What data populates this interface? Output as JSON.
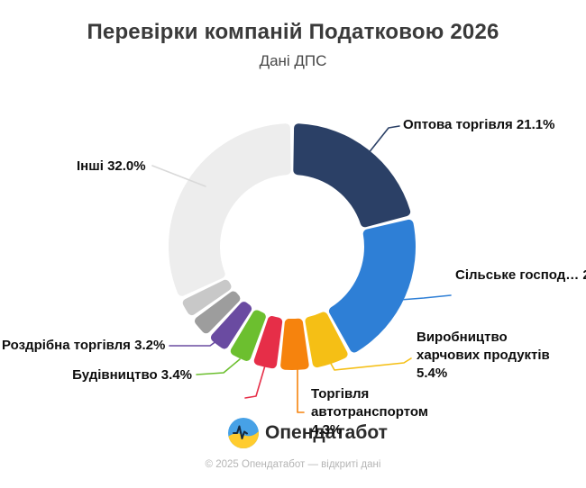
{
  "chart_data": {
    "type": "pie",
    "subtype": "donut",
    "title": "Перевірки компаній Податковою 2026",
    "subtitle": "Дані ДПС",
    "value_unit": "%",
    "legend": "none",
    "slices": [
      {
        "name": "Оптова торгівля",
        "value": 21.1,
        "color": "#2b4066",
        "callout": "Оптова торгівля 21.1%"
      },
      {
        "name": "Сільське господ…",
        "value": 21.0,
        "estimated": true,
        "color": "#2e7fd6",
        "callout": "Сільське господ… 2"
      },
      {
        "name": "Виробництво харчових продуктів",
        "value": 5.4,
        "color": "#f5bf15",
        "callout": "Виробництво\nхарчових продуктів\n5.4%"
      },
      {
        "name": "Торгівля автотранспортом",
        "value": 4.3,
        "color": "#f6830d",
        "callout": "Торгівля\nавтотранспортом\n4.3%"
      },
      {
        "name": "",
        "value": 3.6,
        "estimated": true,
        "color": "#e62e48",
        "callout": null
      },
      {
        "name": "Будівництво",
        "value": 3.4,
        "color": "#6cbf2f",
        "callout": "Будівництво 3.4%"
      },
      {
        "name": "Роздрібна торгівля",
        "value": 3.2,
        "color": "#6a4ba1",
        "callout": "Роздрібна торгівля 3.2%"
      },
      {
        "name": "",
        "value": 3.1,
        "estimated": true,
        "color": "#9d9d9d",
        "callout": null
      },
      {
        "name": "",
        "value": 2.9,
        "estimated": true,
        "color": "#c8c8c8",
        "callout": null
      },
      {
        "name": "Інші",
        "value": 32.0,
        "color": "#ededed",
        "callout": "Інші 32.0%",
        "leader_color": "#d9d9d9"
      }
    ]
  },
  "watermark": {
    "brand": "Опендатабот",
    "logo": "opendatabot-pulse-logo",
    "logo_colors": {
      "blue": "#47a1e6",
      "yellow": "#ffcc2e",
      "pulse": "#16293e"
    }
  },
  "footer": {
    "text": "© 2025 Опендатабот — відкриті дані"
  }
}
